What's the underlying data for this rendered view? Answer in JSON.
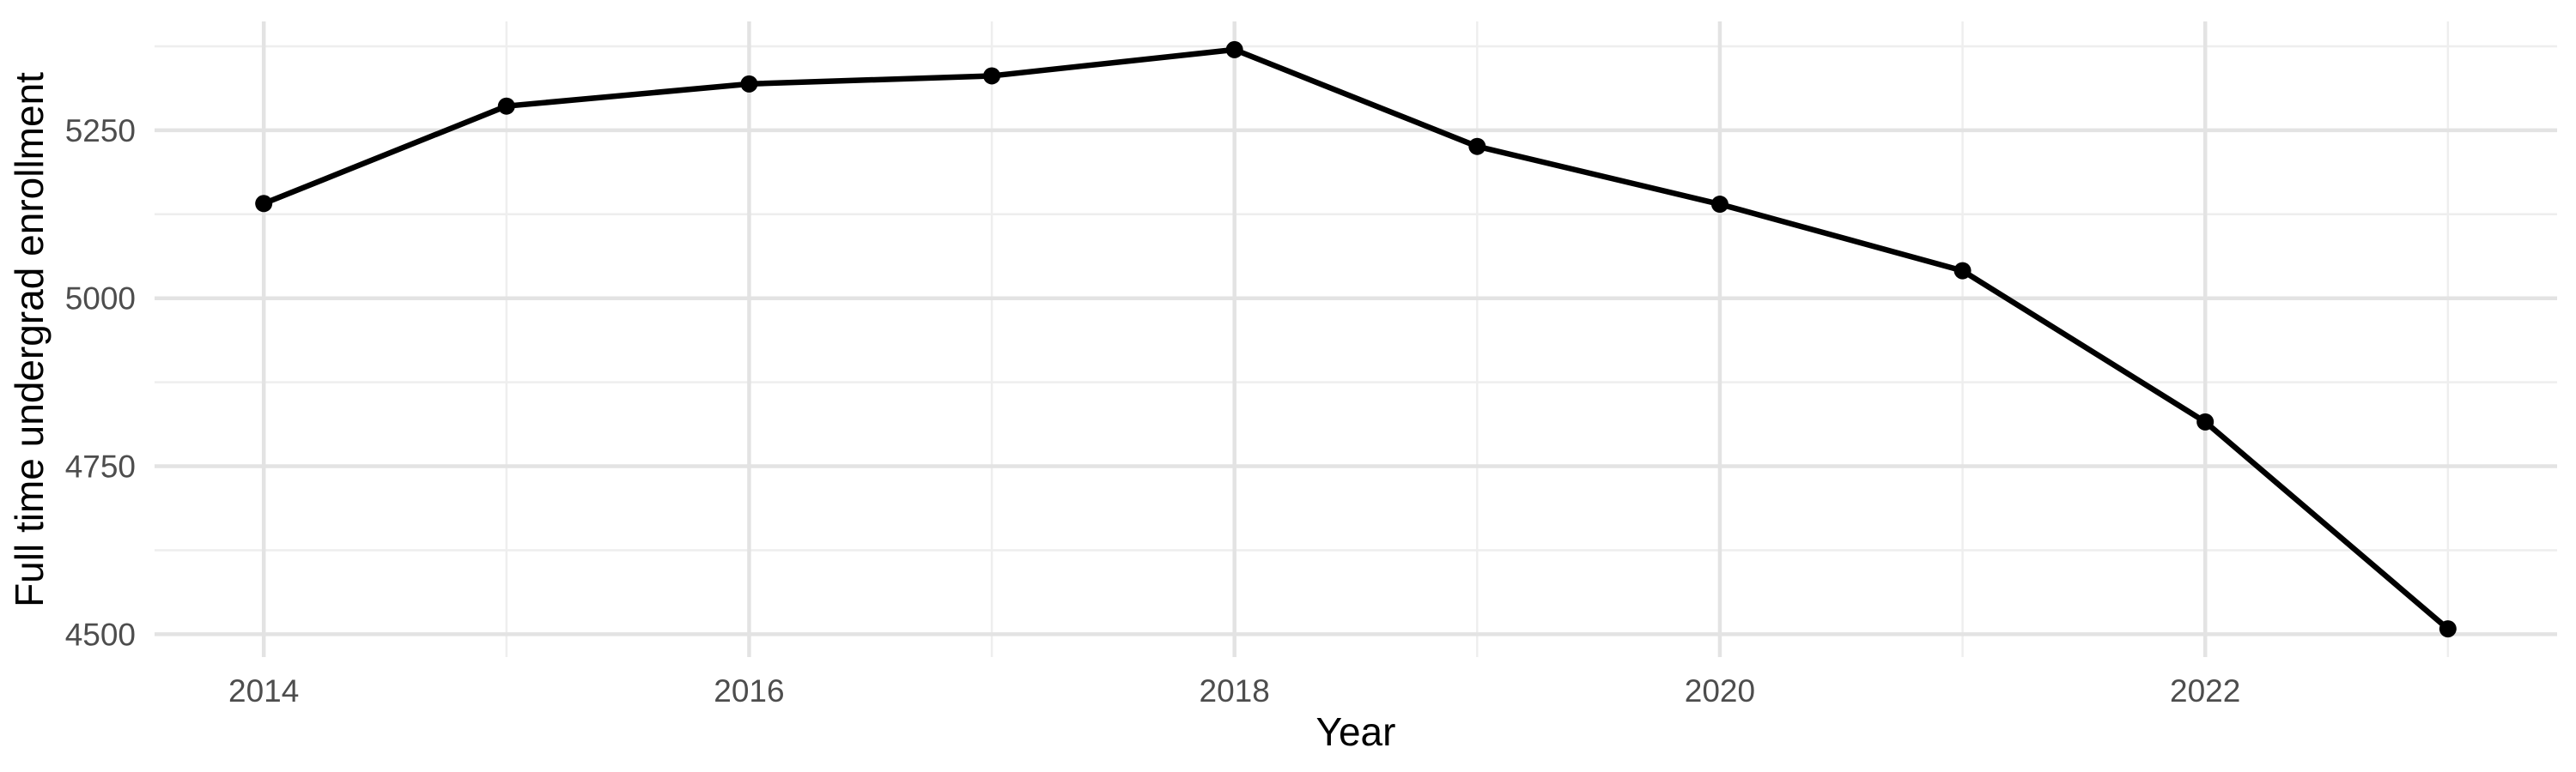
{
  "chart_data": {
    "type": "line",
    "title": "",
    "xlabel": "Year",
    "ylabel": "Full time undergrad enrollment",
    "x": [
      2014,
      2015,
      2016,
      2017,
      2018,
      2019,
      2020,
      2021,
      2022,
      2023
    ],
    "values": [
      5141,
      5286,
      5319,
      5331,
      5370,
      5226,
      5140,
      5041,
      4816,
      4508
    ],
    "series_name": "Full time undergrad enrollment",
    "x_major_ticks": [
      2014,
      2016,
      2018,
      2020,
      2022
    ],
    "x_minor_ticks": [
      2015,
      2017,
      2019,
      2021,
      2023
    ],
    "y_major_ticks": [
      4500,
      4750,
      5000,
      5250
    ],
    "y_minor_ticks": [
      4625,
      4875,
      5125,
      5375
    ],
    "xlim": [
      2013.55,
      2023.45
    ],
    "ylim": [
      4466,
      5412
    ],
    "grid": "major-and-minor",
    "legend_position": "none",
    "marker": "circle",
    "colors": {
      "line": "#000000",
      "point": "#000000",
      "grid_major": "#e3e3e3",
      "grid_minor": "#eeeeee",
      "tick_label": "#4d4d4d",
      "axis_title": "#000000",
      "background": "#ffffff"
    }
  }
}
